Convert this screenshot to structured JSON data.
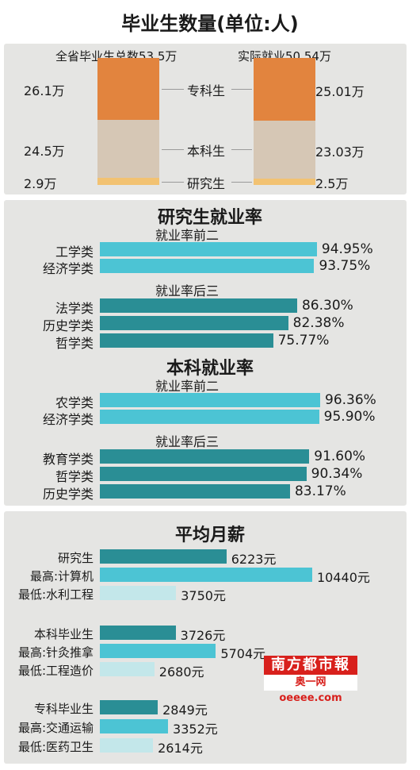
{
  "header": {
    "title": "毕业生数量(单位:人)"
  },
  "colors": {
    "specialist": "#e2843e",
    "undergrad": "#d6c7b5",
    "graduate": "#f2c272",
    "light_bar": "#4cc4d4",
    "dark_bar": "#2a8e95",
    "pale_bar": "#c3e7ea"
  },
  "chart_data": [
    {
      "type": "bar",
      "stacked": true,
      "title": "毕业生数量(单位:人)",
      "categories": [
        "全省毕业生总数53.5万",
        "实际就业50.54万"
      ],
      "series": [
        {
          "name": "专科生",
          "values": [
            26.1,
            25.01
          ],
          "labels": [
            "26.1万",
            "25.01万"
          ]
        },
        {
          "name": "本科生",
          "values": [
            24.5,
            23.03
          ],
          "labels": [
            "24.5万",
            "23.03万"
          ]
        },
        {
          "name": "研究生",
          "values": [
            2.9,
            2.5
          ],
          "labels": [
            "2.9万",
            "2.5万"
          ]
        }
      ]
    },
    {
      "type": "bar",
      "orientation": "horizontal",
      "title": "研究生就业率",
      "groups": [
        {
          "subtitle": "就业率前二",
          "color": "light",
          "items": [
            {
              "category": "工学类",
              "value": 94.95,
              "label": "94.95%"
            },
            {
              "category": "经济学类",
              "value": 93.75,
              "label": "93.75%"
            }
          ]
        },
        {
          "subtitle": "就业率后三",
          "color": "dark",
          "items": [
            {
              "category": "法学类",
              "value": 86.3,
              "label": "86.30%"
            },
            {
              "category": "历史学类",
              "value": 82.38,
              "label": "82.38%"
            },
            {
              "category": "哲学类",
              "value": 75.77,
              "label": "75.77%"
            }
          ]
        }
      ]
    },
    {
      "type": "bar",
      "orientation": "horizontal",
      "title": "本科就业率",
      "groups": [
        {
          "subtitle": "就业率前二",
          "color": "light",
          "items": [
            {
              "category": "农学类",
              "value": 96.36,
              "label": "96.36%"
            },
            {
              "category": "经济学类",
              "value": 95.9,
              "label": "95.90%"
            }
          ]
        },
        {
          "subtitle": "就业率后三",
          "color": "dark",
          "items": [
            {
              "category": "教育学类",
              "value": 91.6,
              "label": "91.60%"
            },
            {
              "category": "哲学类",
              "value": 90.34,
              "label": "90.34%"
            },
            {
              "category": "历史学类",
              "value": 83.17,
              "label": "83.17%"
            }
          ]
        }
      ]
    },
    {
      "type": "bar",
      "orientation": "horizontal",
      "title": "平均月薪",
      "groups": [
        {
          "items": [
            {
              "category": "研究生",
              "value": 6223,
              "label": "6223元",
              "color": "dark"
            },
            {
              "category": "最高:计算机",
              "value": 10440,
              "label": "10440元",
              "color": "light"
            },
            {
              "category": "最低:水利工程",
              "value": 3750,
              "label": "3750元",
              "color": "pale"
            }
          ]
        },
        {
          "items": [
            {
              "category": "本科毕业生",
              "value": 3726,
              "label": "3726元",
              "color": "dark"
            },
            {
              "category": "最高:针灸推拿",
              "value": 5704,
              "label": "5704元",
              "color": "light"
            },
            {
              "category": "最低:工程造价",
              "value": 2680,
              "label": "2680元",
              "color": "pale"
            }
          ]
        },
        {
          "items": [
            {
              "category": "专科毕业生",
              "value": 2849,
              "label": "2849元",
              "color": "dark"
            },
            {
              "category": "最高:交通运输",
              "value": 3352,
              "label": "3352元",
              "color": "light"
            },
            {
              "category": "最低:医药卫生",
              "value": 2614,
              "label": "2614元",
              "color": "pale"
            }
          ]
        }
      ]
    }
  ],
  "watermark": {
    "line1": "南方都市報",
    "line2": "奥一网 oeeee.com"
  }
}
